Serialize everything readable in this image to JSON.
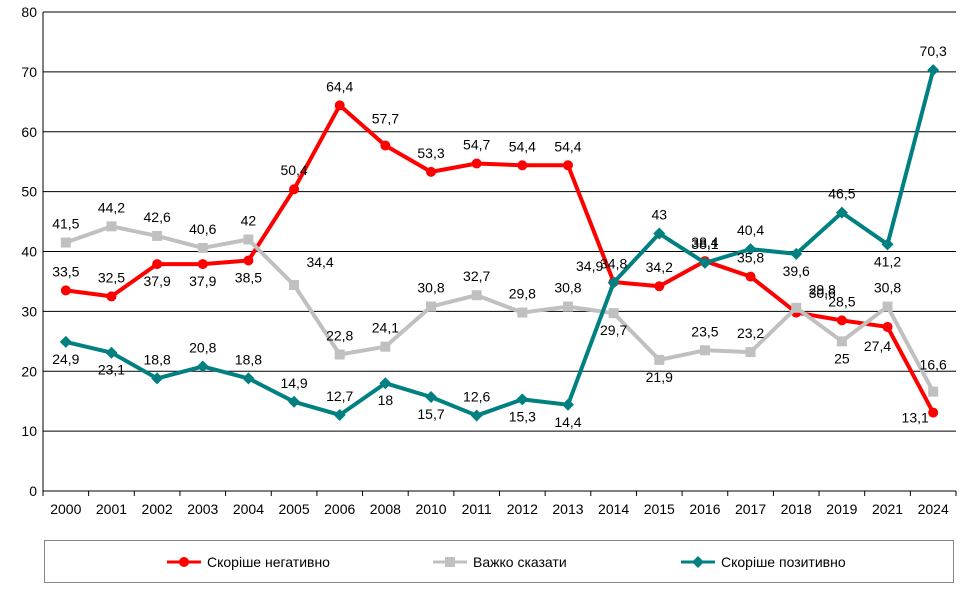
{
  "chart_data": {
    "type": "line",
    "title": "",
    "xlabel": "",
    "ylabel": "",
    "ylim": [
      0,
      80
    ],
    "yticks": [
      0,
      10,
      20,
      30,
      40,
      50,
      60,
      70,
      80
    ],
    "grid": true,
    "legend_position": "bottom",
    "categories": [
      "2000",
      "2001",
      "2002",
      "2003",
      "2004",
      "2005",
      "2006",
      "2008",
      "2010",
      "2011",
      "2012",
      "2013",
      "2014",
      "2015",
      "2016",
      "2017",
      "2018",
      "2019",
      "2021",
      "2024"
    ],
    "series": [
      {
        "name": "Скоріше негативно",
        "color": "#ff0000",
        "marker": "circle",
        "values": [
          33.5,
          32.5,
          37.9,
          37.9,
          38.5,
          50.4,
          64.4,
          57.7,
          53.3,
          54.7,
          54.4,
          54.4,
          34.9,
          34.2,
          38.4,
          35.8,
          29.8,
          28.5,
          27.4,
          13.1
        ],
        "labels": [
          "33,5",
          "32,5",
          "37,9",
          "37,9",
          "38,5",
          "50,4",
          "64,4",
          "57,7",
          "53,3",
          "54,7",
          "54,4",
          "54,4",
          "34,9",
          "34,2",
          "38,4",
          "35,8",
          "29,8",
          "28,5",
          "27,4",
          "13,1"
        ]
      },
      {
        "name": "Важко сказати",
        "color": "#c0c0c0",
        "marker": "square",
        "values": [
          41.5,
          44.2,
          42.6,
          40.6,
          42,
          34.4,
          22.8,
          24.1,
          30.8,
          32.7,
          29.8,
          30.8,
          29.7,
          21.9,
          23.5,
          23.2,
          30.6,
          25,
          30.8,
          16.6
        ],
        "labels": [
          "41,5",
          "44,2",
          "42,6",
          "40,6",
          "42",
          "34,4",
          "22,8",
          "24,1",
          "30,8",
          "32,7",
          "29,8",
          "30,8",
          "29,7",
          "21,9",
          "23,5",
          "23,2",
          "30,6",
          "25",
          "30,8",
          "16,6"
        ]
      },
      {
        "name": "Скоріше позитивно",
        "color": "#008080",
        "marker": "diamond",
        "values": [
          24.9,
          23.1,
          18.8,
          20.8,
          18.8,
          14.9,
          12.7,
          18,
          15.7,
          12.6,
          15.3,
          14.4,
          34.8,
          43,
          38.1,
          40.4,
          39.6,
          46.5,
          41.2,
          70.3
        ],
        "labels": [
          "24,9",
          "23,1",
          "18,8",
          "20,8",
          "18,8",
          "14,9",
          "12,7",
          "18",
          "15,7",
          "12,6",
          "15,3",
          "14,4",
          "34,8",
          "43",
          "38,1",
          "40,4",
          "39,6",
          "46,5",
          "41,2",
          "70,3"
        ]
      }
    ]
  }
}
